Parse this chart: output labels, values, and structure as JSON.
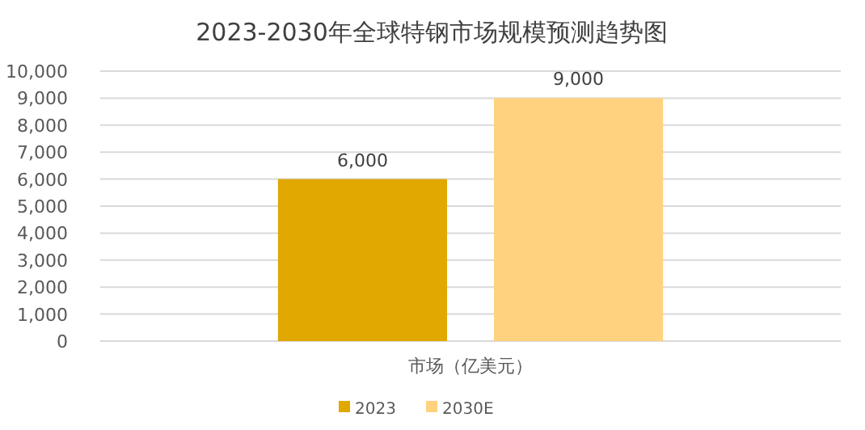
{
  "chart_data": {
    "type": "bar",
    "title": "2023-2030年全球特钢市场规模预测趋势图",
    "categories": [
      "市场（亿美元）"
    ],
    "series": [
      {
        "name": "2023",
        "color": "#e0a800",
        "values": [
          6000
        ],
        "value_labels": [
          "6,000"
        ]
      },
      {
        "name": "2030E",
        "color": "#ffd27f",
        "values": [
          9000
        ],
        "value_labels": [
          "9,000"
        ]
      }
    ],
    "ylim": [
      0,
      10000
    ],
    "yticks": [
      0,
      {
        "value": 1000,
        "label": "1,000"
      },
      {
        "value": 2000,
        "label": "2,000"
      },
      {
        "value": 3000,
        "label": "3,000"
      },
      {
        "value": 4000,
        "label": "4,000"
      },
      {
        "value": 5000,
        "label": "5,000"
      },
      {
        "value": 6000,
        "label": "6,000"
      },
      {
        "value": 7000,
        "label": "7,000"
      },
      {
        "value": 8000,
        "label": "8,000"
      },
      {
        "value": 9000,
        "label": "9,000"
      },
      {
        "value": 10000,
        "label": "10,000"
      }
    ],
    "grid": "y",
    "legend": "bottom"
  }
}
